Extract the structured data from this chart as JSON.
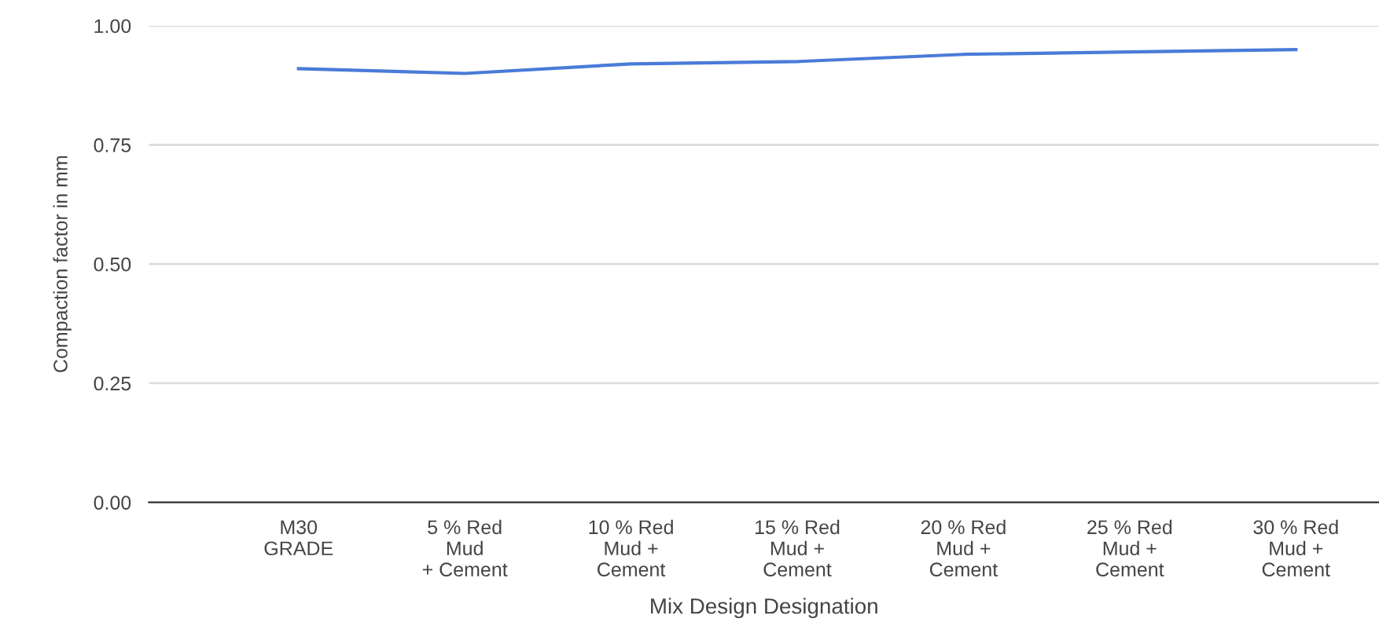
{
  "chart_data": {
    "type": "line",
    "categories": [
      "M30\nGRADE",
      "5 % Red\nMud\n+ Cement",
      "10 % Red\nMud +\nCement",
      "15 % Red\nMud +\nCement",
      "20 % Red\nMud +\nCement",
      "25 % Red\nMud +\nCement",
      "30 % Red\nMud +\nCement"
    ],
    "series": [
      {
        "color": "#4a7bd8",
        "values": [
          0.91,
          0.9,
          0.92,
          0.925,
          0.94,
          0.945,
          0.95
        ]
      }
    ],
    "xlabel": "Mix Design Designation",
    "ylabel": "Compaction factor in mm",
    "ylim": [
      0,
      1
    ],
    "yticks": [
      {
        "value": 0,
        "label": "0.00"
      },
      {
        "value": 0.25,
        "label": "0.25"
      },
      {
        "value": 0.5,
        "label": "0.50"
      },
      {
        "value": 0.75,
        "label": "0.75"
      },
      {
        "value": 1,
        "label": "1.00"
      }
    ],
    "grid": "y",
    "legend": false,
    "marker": "none",
    "line_style": "solid"
  }
}
